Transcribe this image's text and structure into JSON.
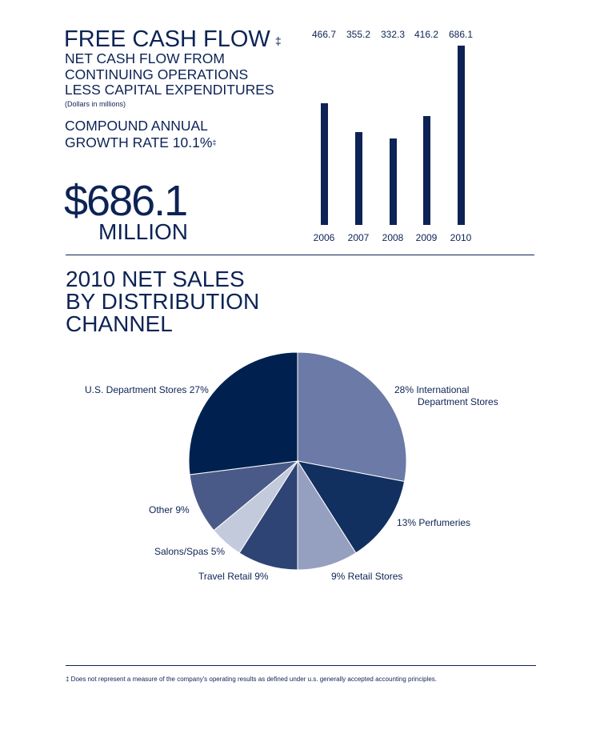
{
  "header": {
    "title": "FREE CASH FLOW",
    "title_mark": "‡",
    "subtitle_lines": [
      "NET CASH FLOW FROM",
      "CONTINUING OPERATIONS",
      "LESS CAPITAL EXPENDITURES"
    ],
    "units": "(Dollars in millions)",
    "cagr_lines": [
      "COMPOUND ANNUAL",
      "GROWTH RATE 10.1%"
    ],
    "cagr_mark": "‡",
    "big_value": "$686.1",
    "big_unit": "MILLION"
  },
  "section2": {
    "title_lines": [
      "2010 NET SALES",
      "BY DISTRIBUTION",
      "CHANNEL"
    ]
  },
  "footnote": "‡  Does not represent a measure of the company's operating results as defined under u.s. generally accepted accounting principles.",
  "chart_data": [
    {
      "type": "bar",
      "title": "Free Cash Flow",
      "categories": [
        "2006",
        "2007",
        "2008",
        "2009",
        "2010"
      ],
      "values": [
        466.7,
        355.2,
        332.3,
        416.2,
        686.1
      ],
      "value_labels": [
        "466.7",
        "355.2",
        "332.3",
        "416.2",
        "686.1"
      ],
      "ylim": [
        0,
        686.1
      ],
      "color": "#0d2355"
    },
    {
      "type": "pie",
      "title": "2010 Net Sales by Distribution Channel",
      "slices": [
        {
          "label": "International Department Stores",
          "text": [
            "28%  International",
            "Department Stores"
          ],
          "value": 28,
          "color": "#6b7aa6"
        },
        {
          "label": "Perfumeries",
          "text": [
            "13%  Perfumeries"
          ],
          "value": 13,
          "color": "#12305f"
        },
        {
          "label": "Retail Stores",
          "text": [
            "9%  Retail Stores"
          ],
          "value": 9,
          "color": "#95a0c0"
        },
        {
          "label": "Travel Retail",
          "text": [
            "Travel Retail  9%"
          ],
          "value": 9,
          "color": "#2e4474"
        },
        {
          "label": "Salons/Spas",
          "text": [
            "Salons/Spas  5%"
          ],
          "value": 5,
          "color": "#c3cadc"
        },
        {
          "label": "Other",
          "text": [
            "Other  9%"
          ],
          "value": 9,
          "color": "#4a5a88"
        },
        {
          "label": "U.S. Department Stores",
          "text": [
            "U.S. Department Stores  27%"
          ],
          "value": 27,
          "color": "#00214f"
        }
      ]
    }
  ]
}
